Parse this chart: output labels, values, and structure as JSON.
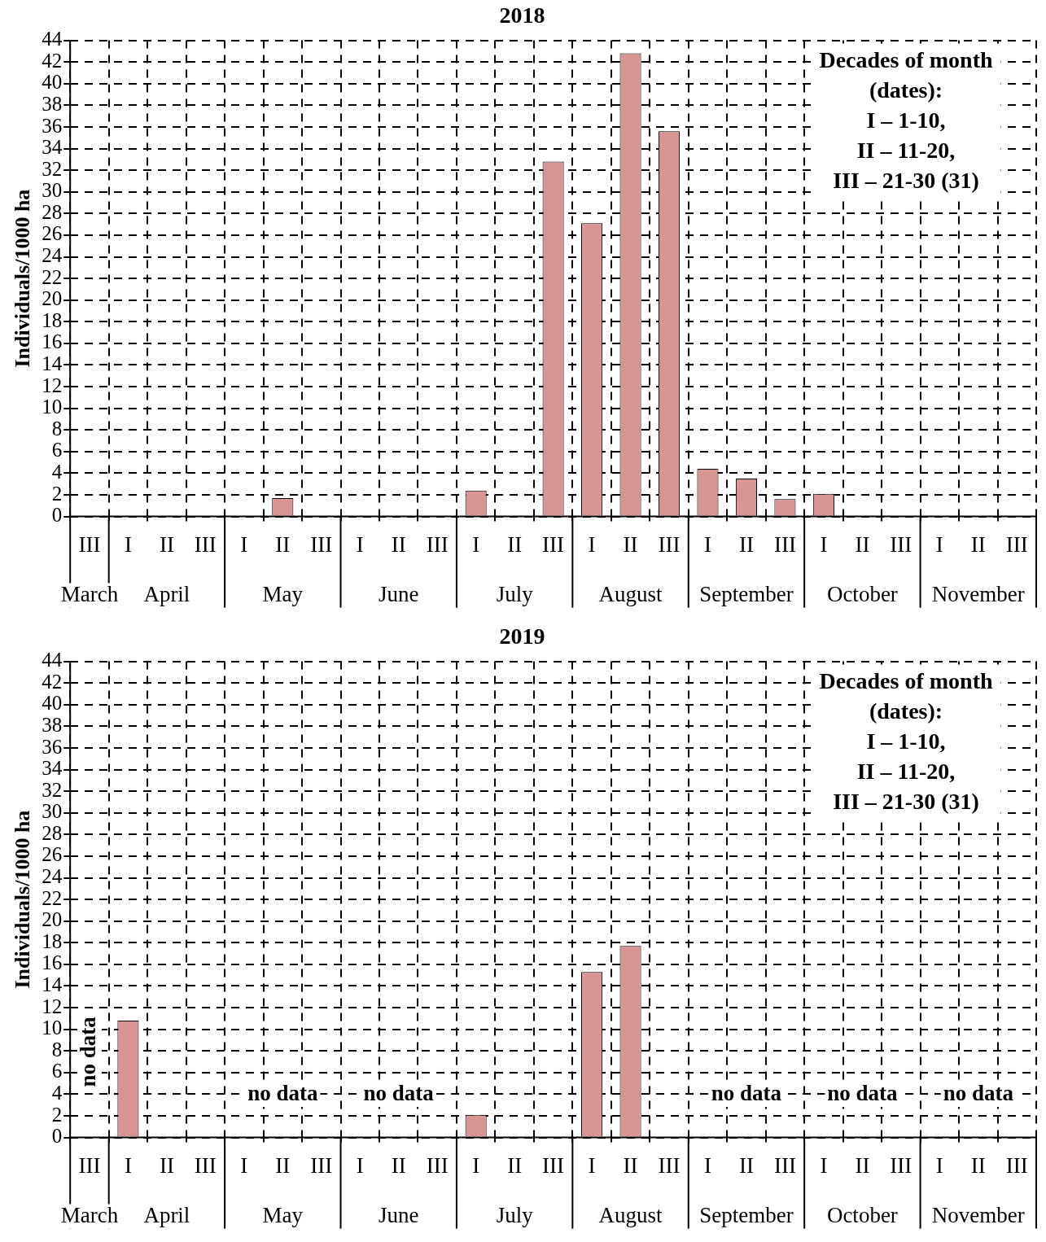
{
  "chart_data": [
    {
      "type": "bar",
      "title": "2018",
      "ylabel": "Individuals/1000 ha",
      "categories": [
        "III",
        "I",
        "II",
        "III",
        "I",
        "II",
        "III",
        "I",
        "II",
        "III",
        "I",
        "II",
        "III",
        "I",
        "II",
        "III",
        "I",
        "II",
        "III",
        "I",
        "II",
        "III",
        "I",
        "II",
        "III"
      ],
      "values": [
        0,
        0,
        0,
        0,
        0,
        1.7,
        0,
        0,
        0,
        0,
        2.4,
        0,
        32.8,
        27.1,
        42.8,
        35.6,
        4.4,
        3.5,
        1.6,
        2.1,
        0,
        0,
        0,
        0,
        0
      ],
      "color": "#d99594",
      "ylim": [
        0,
        44
      ],
      "yticks": [
        0,
        2,
        4,
        6,
        8,
        10,
        12,
        14,
        16,
        18,
        20,
        22,
        24,
        26,
        28,
        30,
        32,
        34,
        36,
        38,
        40,
        42,
        44
      ],
      "grid": true,
      "line_style": "dashed",
      "annotations": [
        "Decades of month\n(dates):\nI – 1-10,\nII – 11-20,\nIII – 21-30 (31)",
        "March",
        "April",
        "May",
        "June",
        "July",
        "August",
        "September",
        "October",
        "November"
      ]
    },
    {
      "type": "bar",
      "title": "2019",
      "ylabel": "Individuals/1000 ha",
      "categories": [
        "III",
        "I",
        "II",
        "III",
        "I",
        "II",
        "III",
        "I",
        "II",
        "III",
        "I",
        "II",
        "III",
        "I",
        "II",
        "III",
        "I",
        "II",
        "III",
        "I",
        "II",
        "III",
        "I",
        "II",
        "III"
      ],
      "values": [
        null,
        10.8,
        0,
        0,
        null,
        null,
        null,
        null,
        null,
        null,
        2.1,
        0,
        0,
        15.3,
        17.7,
        0,
        null,
        null,
        null,
        null,
        null,
        null,
        null,
        null,
        null
      ],
      "color": "#d99594",
      "ylim": [
        0,
        44
      ],
      "yticks": [
        0,
        2,
        4,
        6,
        8,
        10,
        12,
        14,
        16,
        18,
        20,
        22,
        24,
        26,
        28,
        30,
        32,
        34,
        36,
        38,
        40,
        42,
        44
      ],
      "grid": true,
      "line_style": "dashed",
      "annotations": [
        "Decades of month\n(dates):\nI – 1-10,\nII – 11-20,\nIII – 21-30 (31)",
        "March",
        "April",
        "May",
        "June",
        "July",
        "August",
        "September",
        "October",
        "November",
        "no data",
        "no data",
        "no data",
        "no data",
        "no data",
        "no data"
      ]
    }
  ]
}
